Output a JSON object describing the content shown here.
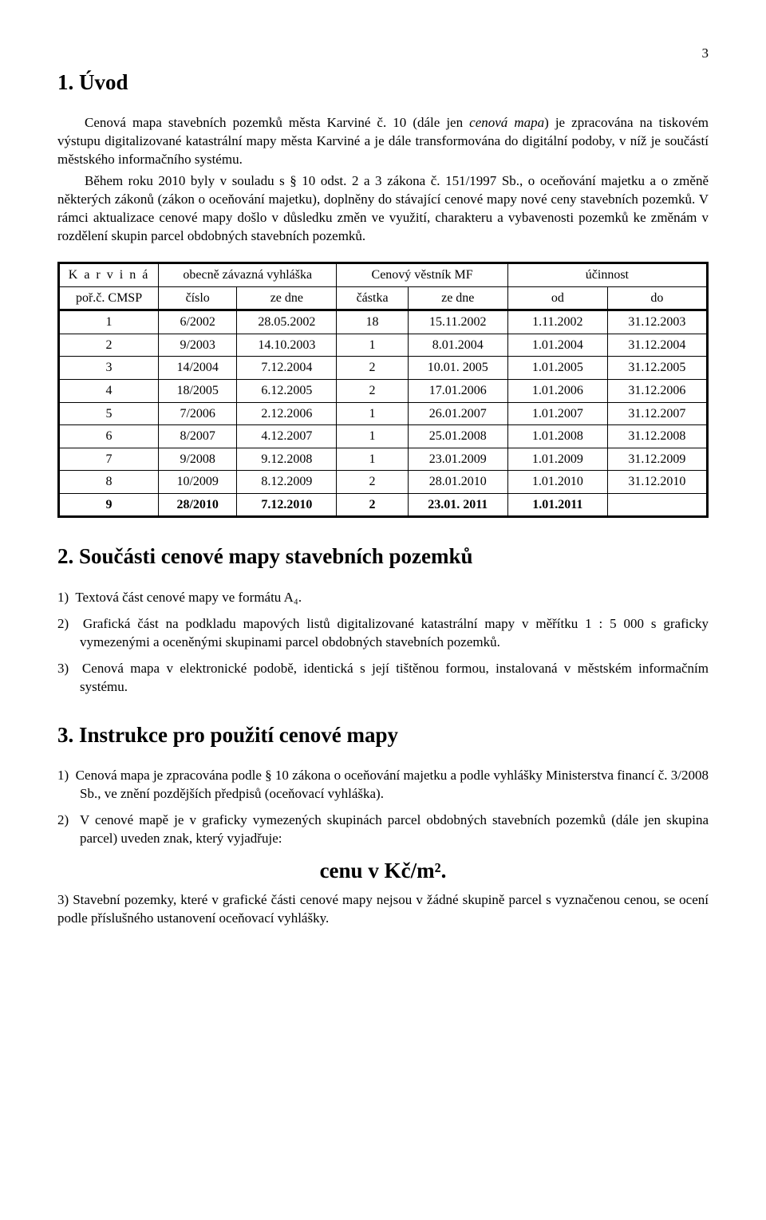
{
  "page_number": "3",
  "section1": {
    "heading": "1. Úvod",
    "para1_a": "Cenová mapa stavebních pozemků města Karviné č. 10 (dále jen ",
    "para1_ital": "cenová mapa",
    "para1_b": ") je zpracována na tiskovém výstupu digitalizované katastrální mapy města Karviné a je dále transformována do digitální podoby, v níž je součástí městského informačního systému.",
    "para2": "Během roku 2010 byly v souladu s § 10 odst. 2 a 3 zákona č. 151/1997 Sb., o oceňování majetku a o změně některých zákonů (zákon o oceňování majetku), doplněny do stávající cenové mapy nové ceny stavebních pozemků. V rámci aktualizace cenové mapy došlo v důsledku změn ve využití, charakteru a vybavenosti pozemků ke změnám v rozdělení skupin parcel obdobných stavebních pozemků."
  },
  "table": {
    "header": {
      "h1_1": "K a r v i n á",
      "h1_2": "obecně závazná vyhláška",
      "h1_3": "Cenový věstník MF",
      "h1_4": "účinnost",
      "h2_1": "poř.č. CMSP",
      "h2_2": "číslo",
      "h2_3": "ze dne",
      "h2_4": "částka",
      "h2_5": "ze dne",
      "h2_6": "od",
      "h2_7": "do"
    },
    "rows": [
      [
        "1",
        "6/2002",
        "28.05.2002",
        "18",
        "15.11.2002",
        "1.11.2002",
        "31.12.2003"
      ],
      [
        "2",
        "9/2003",
        "14.10.2003",
        "1",
        "8.01.2004",
        "1.01.2004",
        "31.12.2004"
      ],
      [
        "3",
        "14/2004",
        "7.12.2004",
        "2",
        "10.01. 2005",
        "1.01.2005",
        "31.12.2005"
      ],
      [
        "4",
        "18/2005",
        "6.12.2005",
        "2",
        "17.01.2006",
        "1.01.2006",
        "31.12.2006"
      ],
      [
        "5",
        "7/2006",
        "2.12.2006",
        "1",
        "26.01.2007",
        "1.01.2007",
        "31.12.2007"
      ],
      [
        "6",
        "8/2007",
        "4.12.2007",
        "1",
        "25.01.2008",
        "1.01.2008",
        "31.12.2008"
      ],
      [
        "7",
        "9/2008",
        "9.12.2008",
        "1",
        "23.01.2009",
        "1.01.2009",
        "31.12.2009"
      ],
      [
        "8",
        "10/2009",
        "8.12.2009",
        "2",
        "28.01.2010",
        "1.01.2010",
        "31.12.2010"
      ],
      [
        "9",
        "28/2010",
        "7.12.2010",
        "2",
        "23.01. 2011",
        "1.01.2011",
        ""
      ]
    ],
    "col_widths": [
      "14%",
      "11%",
      "14%",
      "10%",
      "14%",
      "14%",
      "14%"
    ]
  },
  "section2": {
    "heading": "2. Součásti cenové mapy stavebních pozemků",
    "items": [
      "1)  Textová část cenové mapy ve formátu A₄.",
      "2)  Grafická část na podkladu mapových listů digitalizované katastrální mapy v měřítku 1 : 5 000 s graficky vymezenými a oceněnými skupinami parcel obdobných stavebních pozemků.",
      "3)  Cenová mapa v elektronické podobě, identická s její tištěnou formou, instalovaná v městském informačním systému."
    ]
  },
  "section3": {
    "heading": "3. Instrukce pro použití cenové mapy",
    "items": [
      "1)  Cenová mapa je zpracována podle § 10 zákona o oceňování majetku a podle vyhlášky Ministerstva financí č. 3/2008 Sb., ve znění pozdějších předpisů (oceňovací vyhláška).",
      "2)  V cenové mapě je v graficky vymezených skupinách parcel obdobných stavebních pozemků (dále jen skupina parcel) uveden znak, který vyjadřuje:"
    ],
    "price_label": "cenu v Kč/m².",
    "item3": "3) Stavební pozemky, které v grafické části cenové mapy nejsou v žádné skupině parcel s vyznačenou cenou, se ocení podle příslušného ustanovení oceňovací vyhlášky."
  }
}
